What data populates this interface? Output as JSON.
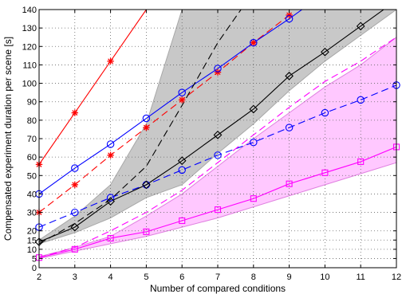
{
  "chart_data": {
    "type": "line",
    "xlabel": "Number of compared conditions",
    "ylabel": "Compensated experiment duration per scene [s]",
    "xlim": [
      2,
      12
    ],
    "ylim": [
      0,
      140
    ],
    "xticks": [
      2,
      3,
      4,
      5,
      6,
      7,
      8,
      9,
      10,
      11,
      12
    ],
    "yticks": [
      0,
      5,
      10,
      15,
      20,
      30,
      40,
      50,
      60,
      70,
      80,
      90,
      100,
      110,
      120,
      130,
      140
    ],
    "grid": true,
    "shaded_bands": [
      {
        "color": "#c8c8c8",
        "stroke": "#a8a8a8",
        "x": [
          2,
          3,
          4,
          5,
          6,
          7,
          8,
          9,
          10,
          11,
          12
        ],
        "upper": [
          15,
          28,
          45,
          78,
          140,
          150,
          150,
          150,
          150,
          150,
          150
        ],
        "lower": [
          13,
          19,
          27,
          38,
          45,
          62,
          78,
          96,
          112,
          126,
          140
        ]
      },
      {
        "color": "#ffc8ff",
        "stroke": "#e080e0",
        "x": [
          2,
          3,
          4,
          5,
          6,
          7,
          8,
          9,
          10,
          11,
          12
        ],
        "upper": [
          6,
          11,
          17,
          28,
          40,
          55,
          70,
          84,
          98,
          110,
          125
        ],
        "lower": [
          5,
          9,
          13,
          17,
          22,
          27,
          33,
          39,
          45,
          51,
          57
        ]
      }
    ],
    "series": [
      {
        "color": "#ff0000",
        "dash": "solid",
        "marker": "star",
        "x": [
          2,
          3,
          4,
          5
        ],
        "y": [
          56,
          84,
          112,
          140
        ],
        "marker_x": [
          2,
          3,
          4
        ]
      },
      {
        "color": "#ff0000",
        "dash": "dashed",
        "marker": "star",
        "x": [
          2,
          3,
          4,
          5,
          6,
          7,
          8,
          9
        ],
        "y": [
          30,
          45,
          61,
          76,
          91,
          106,
          122,
          137
        ]
      },
      {
        "color": "#0000ff",
        "dash": "solid",
        "marker": "circle",
        "x": [
          2,
          3,
          4,
          5,
          6,
          7,
          8,
          9,
          10
        ],
        "y": [
          40,
          54,
          67,
          81,
          95,
          108,
          122,
          135,
          149
        ],
        "marker_x": [
          2,
          3,
          4,
          5,
          6,
          7,
          8,
          9
        ]
      },
      {
        "color": "#0000ff",
        "dash": "dashed",
        "marker": "circle",
        "x": [
          2,
          3,
          4,
          5,
          6,
          7,
          8,
          9,
          10,
          11,
          12
        ],
        "y": [
          22,
          30,
          38,
          45,
          53,
          61,
          68,
          76,
          84,
          91,
          99
        ]
      },
      {
        "color": "#000000",
        "dash": "solid",
        "marker": "diamond",
        "x": [
          2,
          3,
          4,
          5,
          6,
          7,
          8,
          9,
          10,
          11,
          12
        ],
        "y": [
          14,
          22,
          36,
          45,
          58,
          72,
          86,
          104,
          117,
          131,
          145
        ],
        "marker_x": [
          2,
          3,
          4,
          5,
          6,
          7,
          8,
          9,
          10,
          11
        ]
      },
      {
        "color": "#000000",
        "dash": "dashed",
        "marker": "none",
        "x": [
          2,
          3,
          4,
          5,
          6,
          7,
          7.65
        ],
        "y": [
          13,
          24,
          37,
          55,
          88,
          122,
          140
        ]
      },
      {
        "color": "#ff00ff",
        "dash": "solid",
        "marker": "square",
        "x": [
          2,
          3,
          4,
          5,
          6,
          7,
          8,
          9,
          10,
          11,
          12
        ],
        "y": [
          5.5,
          10,
          16,
          19.5,
          25.5,
          31.5,
          37.5,
          45.5,
          51.5,
          57.5,
          65.5
        ]
      },
      {
        "color": "#ff00ff",
        "dash": "dashed",
        "marker": "none",
        "x": [
          2,
          3,
          4,
          5,
          6,
          7,
          8,
          9,
          10,
          11,
          12
        ],
        "y": [
          5.5,
          11,
          20,
          30,
          42,
          57,
          72,
          87,
          101,
          112,
          125
        ]
      }
    ]
  }
}
